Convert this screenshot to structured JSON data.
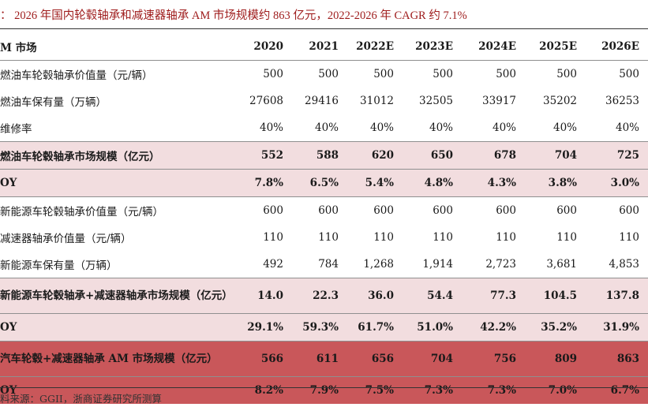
{
  "title": "：  2026 年国内轮毂轴承和减速器轴承 AM 市场规模约 863 亿元，2022-2026 年 CAGR 约 7.1%",
  "header": {
    "label": "M 市场",
    "years": [
      "2020",
      "2021",
      "2022E",
      "2023E",
      "2024E",
      "2025E",
      "2026E"
    ]
  },
  "rows": [
    {
      "label": "燃油车轮毂轴承价值量（元/辆）",
      "values": [
        "500",
        "500",
        "500",
        "500",
        "500",
        "500",
        "500"
      ]
    },
    {
      "label": "燃油车保有量（万辆）",
      "values": [
        "27608",
        "29416",
        "31012",
        "32505",
        "33917",
        "35202",
        "36253"
      ]
    },
    {
      "label": "维修率",
      "values": [
        "40%",
        "40%",
        "40%",
        "40%",
        "40%",
        "40%",
        "40%"
      ]
    },
    {
      "label": "燃油车轮毂轴承市场规模（亿元）",
      "values": [
        "552",
        "588",
        "620",
        "650",
        "678",
        "704",
        "725"
      ]
    },
    {
      "label": "OY",
      "values": [
        "7.8%",
        "6.5%",
        "5.4%",
        "4.8%",
        "4.3%",
        "3.8%",
        "3.0%"
      ]
    },
    {
      "label": "新能源车轮毂轴承价值量（元/辆）",
      "values": [
        "600",
        "600",
        "600",
        "600",
        "600",
        "600",
        "600"
      ]
    },
    {
      "label": "减速器轴承价值量（元/辆）",
      "values": [
        "110",
        "110",
        "110",
        "110",
        "110",
        "110",
        "110"
      ]
    },
    {
      "label": "新能源车保有量（万辆）",
      "values": [
        "492",
        "784",
        "1,268",
        "1,914",
        "2,723",
        "3,681",
        "4,853"
      ]
    },
    {
      "label": "新能源车轮毂轴承+减速器轴承市场规模（亿元）",
      "values": [
        "14.0",
        "22.3",
        "36.0",
        "54.4",
        "77.3",
        "104.5",
        "137.8"
      ]
    },
    {
      "label": "OY",
      "values": [
        "29.1%",
        "59.3%",
        "61.7%",
        "51.0%",
        "42.2%",
        "35.2%",
        "31.9%"
      ]
    },
    {
      "label": "汽车轮毂+减速器轴承 AM 市场规模（亿元）",
      "values": [
        "566",
        "611",
        "656",
        "704",
        "756",
        "809",
        "863"
      ]
    },
    {
      "label": "OY",
      "values": [
        "8.2%",
        "7.9%",
        "7.5%",
        "7.3%",
        "7.3%",
        "7.0%",
        "6.7%"
      ]
    }
  ],
  "source": "料来源：GGII，浙商证券研究所测算",
  "colors": {
    "title": "#9e1b1b",
    "pink": "#f2dddf",
    "red": "#c9575a"
  }
}
